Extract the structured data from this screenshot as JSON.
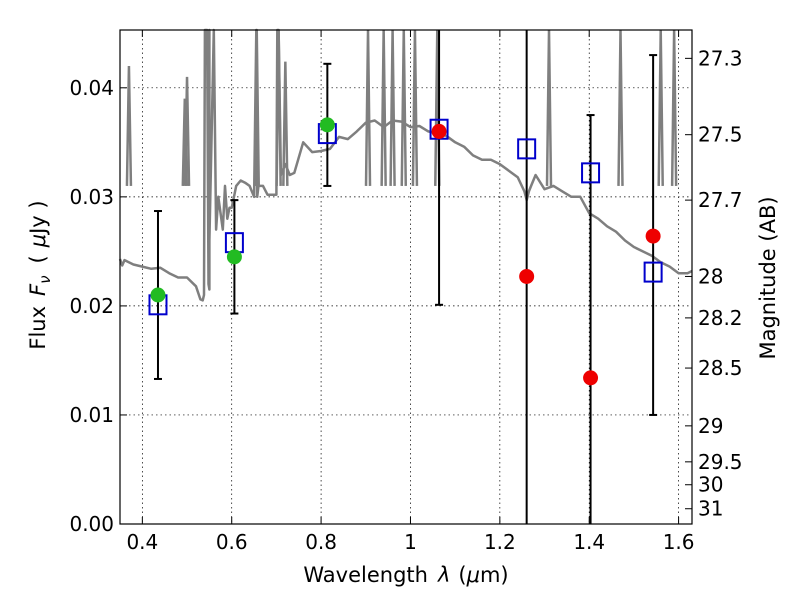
{
  "chart_data": {
    "type": "scatter",
    "xlabel": "Wavelength",
    "xlabel_symbol": "λ",
    "xlabel_unit_open": "(",
    "xlabel_unit_mu": "μ",
    "xlabel_unit_rest": "m)",
    "ylabel_left": "Flux",
    "ylabel_left_symbol": "F",
    "ylabel_left_subscript": "ν",
    "ylabel_left_unit_open": "(",
    "ylabel_left_unit_mu": "μ",
    "ylabel_left_unit_rest": "Jy )",
    "ylabel_right": "Magnitude (AB)",
    "xlim": [
      0.35,
      1.63
    ],
    "ylim": [
      0.0,
      0.0453
    ],
    "x_ticks": [
      0.4,
      0.6,
      0.8,
      1.0,
      1.2,
      1.4,
      1.6
    ],
    "x_tick_labels": [
      "0.4",
      "0.6",
      "0.8",
      "1",
      "1.2",
      "1.4",
      "1.6"
    ],
    "y_ticks": [
      0.0,
      0.01,
      0.02,
      0.03,
      0.04
    ],
    "y_tick_labels": [
      "0.00",
      "0.01",
      "0.02",
      "0.03",
      "0.04"
    ],
    "right_ticks": [
      {
        "flux": 0.0427,
        "label": "27.3"
      },
      {
        "flux": 0.0357,
        "label": "27.5"
      },
      {
        "flux": 0.0297,
        "label": "27.7"
      },
      {
        "flux": 0.0227,
        "label": "28"
      },
      {
        "flux": 0.0189,
        "label": "28.2"
      },
      {
        "flux": 0.0143,
        "label": "28.5"
      },
      {
        "flux": 0.009,
        "label": "29"
      },
      {
        "flux": 0.0057,
        "label": "29.5"
      },
      {
        "flux": 0.0036,
        "label": "30"
      },
      {
        "flux": 0.0014,
        "label": "31"
      }
    ],
    "grid": true,
    "colors": {
      "spectrum": "#7f7f7f",
      "model_marker": "#0000cc",
      "green_marker": "#22bb22",
      "red_marker": "#ee0000",
      "errorbar": "#000000"
    },
    "spectrum": {
      "x": [
        0.35,
        0.355,
        0.36,
        0.38,
        0.4,
        0.42,
        0.44,
        0.46,
        0.48,
        0.5,
        0.52,
        0.53,
        0.535,
        0.538,
        0.54,
        0.545,
        0.548,
        0.55,
        0.55,
        0.55,
        0.56,
        0.565,
        0.57,
        0.58,
        0.585,
        0.59,
        0.595,
        0.6,
        0.605,
        0.61,
        0.62,
        0.63,
        0.64,
        0.65,
        0.655,
        0.656,
        0.657,
        0.66,
        0.67,
        0.68,
        0.7,
        0.702,
        0.705,
        0.71,
        0.72,
        0.73,
        0.74,
        0.76,
        0.78,
        0.8,
        0.82,
        0.84,
        0.86,
        0.88,
        0.9,
        0.92,
        0.94,
        0.96,
        0.98,
        1.0,
        1.02,
        1.04,
        1.06,
        1.08,
        1.1,
        1.12,
        1.14,
        1.16,
        1.18,
        1.2,
        1.22,
        1.24,
        1.255,
        1.26,
        1.265,
        1.27,
        1.28,
        1.3,
        1.32,
        1.34,
        1.36,
        1.38,
        1.4,
        1.42,
        1.44,
        1.46,
        1.48,
        1.5,
        1.52,
        1.54,
        1.56,
        1.58,
        1.6,
        1.62,
        1.63
      ],
      "y": [
        0.0243,
        0.0237,
        0.0242,
        0.0238,
        0.0236,
        0.0234,
        0.0235,
        0.023,
        0.0226,
        0.0226,
        0.0218,
        0.0206,
        0.0205,
        0.021,
        0.0453,
        0.0453,
        0.022,
        0.0215,
        0.0453,
        0.026,
        0.0453,
        0.027,
        0.03,
        0.027,
        0.031,
        0.028,
        0.029,
        0.029,
        0.03,
        0.031,
        0.0315,
        0.0313,
        0.031,
        0.03,
        0.0453,
        0.0453,
        0.03,
        0.031,
        0.031,
        0.0302,
        0.0302,
        0.0453,
        0.0453,
        0.032,
        0.033,
        0.032,
        0.0322,
        0.035,
        0.0341,
        0.0342,
        0.0344,
        0.0355,
        0.0353,
        0.036,
        0.0368,
        0.037,
        0.0364,
        0.037,
        0.0369,
        0.0364,
        0.0365,
        0.036,
        0.0358,
        0.0356,
        0.035,
        0.0346,
        0.0338,
        0.0334,
        0.0334,
        0.033,
        0.0324,
        0.0318,
        0.0305,
        0.0297,
        0.0305,
        0.031,
        0.032,
        0.0307,
        0.031,
        0.0305,
        0.03,
        0.03,
        0.0285,
        0.028,
        0.0273,
        0.0268,
        0.026,
        0.0254,
        0.025,
        0.0246,
        0.024,
        0.0236,
        0.023,
        0.023,
        0.0232
      ],
      "emission_lines": [
        {
          "x": 0.37,
          "y": 0.042
        },
        {
          "x": 0.495,
          "y": 0.039
        },
        {
          "x": 0.5,
          "y": 0.041
        },
        {
          "x": 0.656,
          "y": 0.0453
        },
        {
          "x": 0.705,
          "y": 0.0453
        },
        {
          "x": 0.72,
          "y": 0.0424
        },
        {
          "x": 0.905,
          "y": 0.0453
        },
        {
          "x": 0.94,
          "y": 0.0453
        },
        {
          "x": 0.96,
          "y": 0.0453
        },
        {
          "x": 0.985,
          "y": 0.0453
        },
        {
          "x": 1.01,
          "y": 0.0453
        },
        {
          "x": 1.06,
          "y": 0.0453
        },
        {
          "x": 1.31,
          "y": 0.0453
        },
        {
          "x": 1.47,
          "y": 0.0453
        },
        {
          "x": 1.56,
          "y": 0.0453
        },
        {
          "x": 1.59,
          "y": 0.0453
        }
      ]
    },
    "model_points": [
      {
        "x": 0.435,
        "y": 0.0201
      },
      {
        "x": 0.606,
        "y": 0.0258
      },
      {
        "x": 0.814,
        "y": 0.0358
      },
      {
        "x": 1.064,
        "y": 0.0362
      },
      {
        "x": 1.26,
        "y": 0.0344
      },
      {
        "x": 1.403,
        "y": 0.0322
      },
      {
        "x": 1.543,
        "y": 0.0231
      }
    ],
    "green_points": [
      {
        "x": 0.435,
        "y": 0.021
      },
      {
        "x": 0.606,
        "y": 0.0245
      },
      {
        "x": 0.814,
        "y": 0.0366
      }
    ],
    "red_points": [
      {
        "x": 1.064,
        "y": 0.036
      },
      {
        "x": 1.26,
        "y": 0.0227
      },
      {
        "x": 1.403,
        "y": 0.0134
      },
      {
        "x": 1.543,
        "y": 0.0264
      }
    ],
    "error_bars": [
      {
        "x": 0.435,
        "low": 0.0133,
        "high": 0.0287
      },
      {
        "x": 0.606,
        "low": 0.0193,
        "high": 0.0297
      },
      {
        "x": 0.814,
        "low": 0.031,
        "high": 0.0422
      },
      {
        "x": 1.064,
        "low": 0.0201,
        "high": 0.0453
      },
      {
        "x": 1.26,
        "low": 0.0,
        "high": 0.0453
      },
      {
        "x": 1.403,
        "low": 0.0,
        "high": 0.0375
      },
      {
        "x": 1.543,
        "low": 0.01,
        "high": 0.043
      }
    ]
  }
}
